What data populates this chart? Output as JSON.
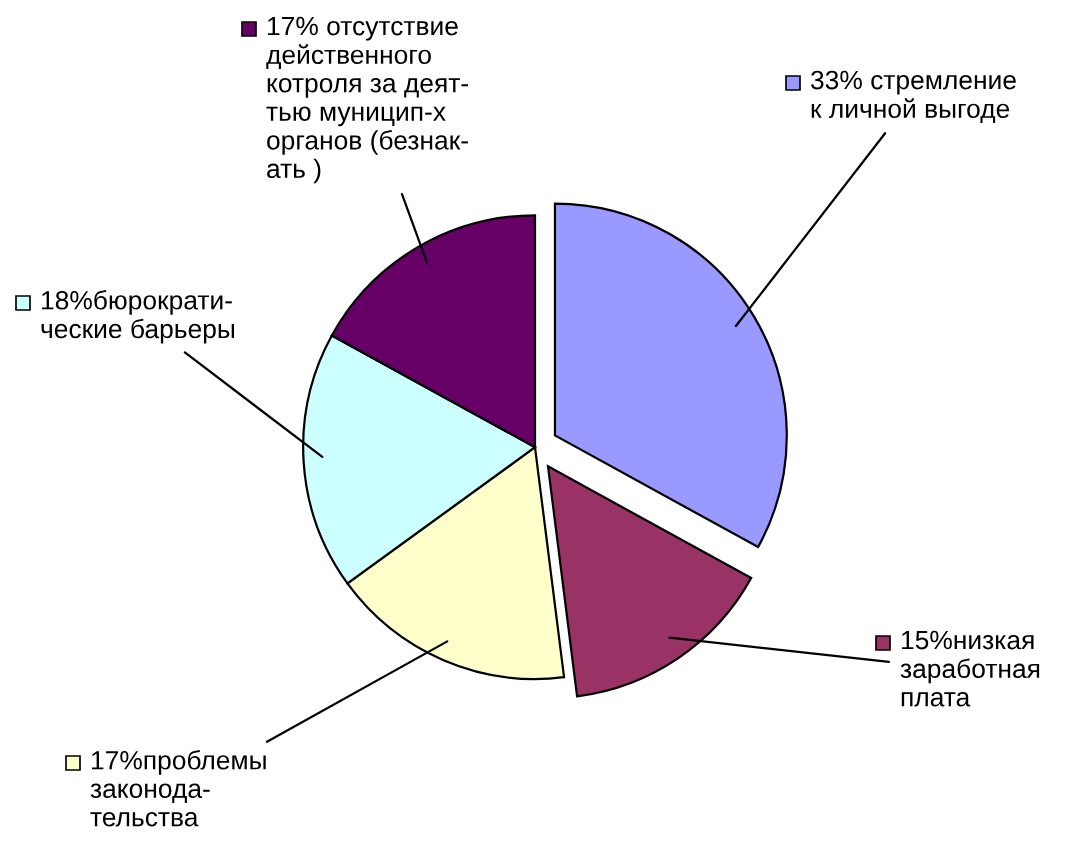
{
  "chart_data": {
    "type": "pie",
    "categories": [
      "33% стремление\nк личной выгоде",
      "15%низкая\nзаработная\nплата",
      "17%проблемы\nзаконода-\nтельства",
      "18%бюрократи-\nческие барьеры",
      "17% отсутствие\nдейственного\nкотроля за деят-\nтью муницип-х\nорганов (безнак-\nать )"
    ],
    "values": [
      33,
      15,
      17,
      18,
      17
    ],
    "colors": [
      "#9999ff",
      "#993366",
      "#ffffcc",
      "#ccffff",
      "#660066"
    ],
    "legend": "top left"
  }
}
